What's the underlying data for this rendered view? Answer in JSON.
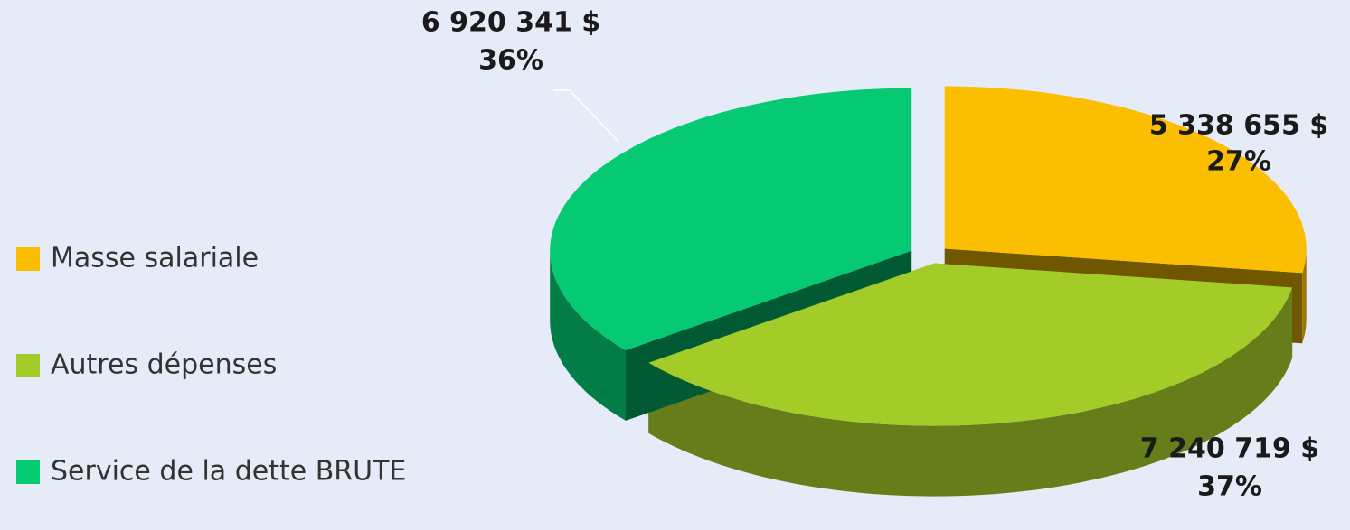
{
  "chart_data": {
    "type": "pie",
    "categories": [
      "Masse salariale",
      "Autres dépenses",
      "Service de la dette BRUTE"
    ],
    "values": [
      5338655,
      7240719,
      6920341
    ],
    "value_labels": [
      "5 338 655  $",
      "7 240 719  $",
      "6 920 341  $"
    ],
    "percents": [
      27,
      37,
      36
    ],
    "percent_labels": [
      "27%",
      "37%",
      "36%"
    ],
    "colors": [
      "#fbbe00",
      "#a4cc29",
      "#05c973"
    ],
    "legend": "left"
  }
}
